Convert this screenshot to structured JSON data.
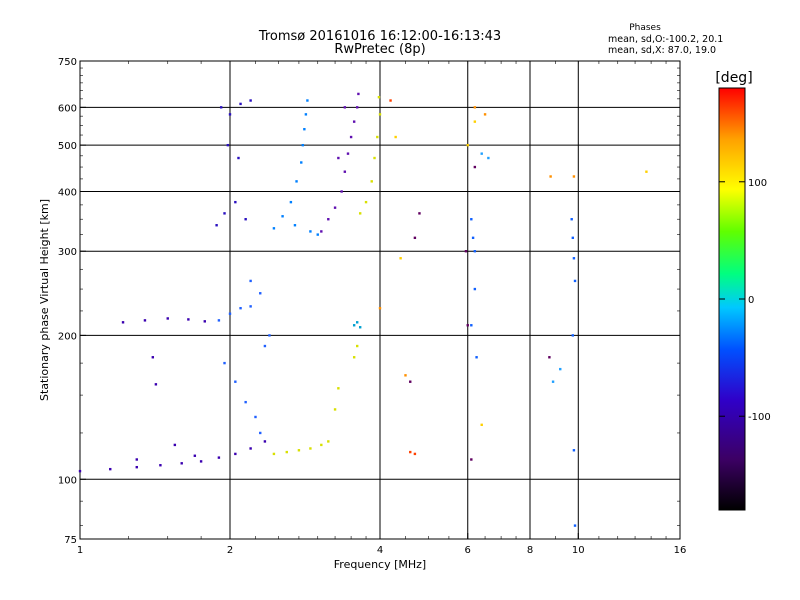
{
  "chart_data": {
    "type": "scatter",
    "title": "Tromsø 20161016 16:12:00-16:13:43",
    "subtitle": "RwPretec (8p)",
    "xlabel": "Frequency [MHz]",
    "ylabel": "Stationary phase Virtual Height [km]",
    "x_scale": "log2",
    "y_scale": "log",
    "xlim": [
      1,
      16
    ],
    "ylim": [
      75,
      750
    ],
    "x_ticks": [
      1,
      2,
      4,
      6,
      8,
      10,
      16
    ],
    "x_tick_labels": [
      "1",
      "2",
      "4",
      "6",
      "8",
      "10",
      "16"
    ],
    "y_ticks": [
      75,
      100,
      200,
      300,
      400,
      500,
      600,
      750
    ],
    "y_tick_labels": [
      "75",
      "100",
      "200",
      "300",
      "400",
      "500",
      "600",
      "750"
    ],
    "grid_x": [
      2,
      4,
      6,
      8,
      10
    ],
    "grid_y": [
      100,
      200,
      300,
      400,
      500,
      600
    ],
    "grid": true,
    "info": {
      "heading": "Phases",
      "line1": "mean, sd,O:-100.2, 20.1",
      "line2": "mean, sd,X:  87.0, 19.0"
    },
    "colorbar": {
      "label": "[deg]",
      "range": [
        -180,
        180
      ],
      "ticks": [
        100,
        0,
        -100
      ],
      "tick_labels": [
        "100",
        "0",
        "-100"
      ],
      "colormap": [
        "#000000",
        "#3c0064",
        "#3000c8",
        "#0050ff",
        "#00c8ff",
        "#00ff80",
        "#60ff00",
        "#ffff00",
        "#ffa000",
        "#ff0000"
      ]
    },
    "series": [
      {
        "color": "#3a00b0",
        "points": [
          [
            1.0,
            104
          ],
          [
            1.15,
            105
          ],
          [
            1.3,
            106
          ],
          [
            1.45,
            107
          ],
          [
            1.6,
            108
          ],
          [
            1.75,
            109
          ],
          [
            1.9,
            111
          ],
          [
            2.05,
            113
          ],
          [
            2.2,
            116
          ],
          [
            2.35,
            120
          ],
          [
            1.22,
            213
          ],
          [
            1.35,
            215
          ],
          [
            1.5,
            217
          ],
          [
            1.65,
            216
          ],
          [
            1.78,
            214
          ],
          [
            1.4,
            180
          ],
          [
            1.42,
            158
          ],
          [
            1.3,
            110
          ],
          [
            1.55,
            118
          ],
          [
            1.7,
            112
          ]
        ]
      },
      {
        "color": "#2060ff",
        "points": [
          [
            1.9,
            215
          ],
          [
            2.0,
            222
          ],
          [
            2.1,
            228
          ],
          [
            2.2,
            230
          ],
          [
            1.95,
            175
          ],
          [
            2.05,
            160
          ],
          [
            2.15,
            145
          ],
          [
            2.25,
            135
          ],
          [
            2.3,
            125
          ],
          [
            2.35,
            190
          ],
          [
            2.4,
            200
          ],
          [
            2.2,
            260
          ],
          [
            2.3,
            245
          ]
        ]
      },
      {
        "color": "#2a10c0",
        "points": [
          [
            1.88,
            340
          ],
          [
            1.95,
            360
          ],
          [
            2.05,
            380
          ],
          [
            2.15,
            350
          ],
          [
            1.92,
            600
          ],
          [
            2.0,
            580
          ],
          [
            2.1,
            610
          ],
          [
            2.2,
            620
          ],
          [
            1.98,
            500
          ],
          [
            2.08,
            470
          ]
        ]
      },
      {
        "color": "#0080ff",
        "points": [
          [
            2.45,
            335
          ],
          [
            2.55,
            355
          ],
          [
            2.65,
            380
          ],
          [
            2.72,
            420
          ],
          [
            2.78,
            460
          ],
          [
            2.8,
            500
          ],
          [
            2.82,
            540
          ],
          [
            2.84,
            580
          ],
          [
            2.86,
            620
          ],
          [
            2.7,
            340
          ],
          [
            2.9,
            330
          ],
          [
            3.0,
            325
          ]
        ]
      },
      {
        "color": "#6010b0",
        "points": [
          [
            3.05,
            330
          ],
          [
            3.15,
            350
          ],
          [
            3.25,
            370
          ],
          [
            3.35,
            400
          ],
          [
            3.4,
            440
          ],
          [
            3.45,
            480
          ],
          [
            3.5,
            520
          ],
          [
            3.55,
            560
          ],
          [
            3.6,
            600
          ],
          [
            3.62,
            640
          ],
          [
            3.3,
            470
          ],
          [
            3.4,
            600
          ]
        ]
      },
      {
        "color": "#d8e000",
        "points": [
          [
            2.45,
            113
          ],
          [
            2.6,
            114
          ],
          [
            2.75,
            115
          ],
          [
            2.9,
            116
          ],
          [
            3.05,
            118
          ],
          [
            3.15,
            120
          ],
          [
            3.25,
            140
          ],
          [
            3.3,
            155
          ],
          [
            3.55,
            180
          ],
          [
            3.6,
            190
          ],
          [
            3.65,
            360
          ],
          [
            3.75,
            380
          ],
          [
            3.85,
            420
          ],
          [
            3.9,
            470
          ],
          [
            3.95,
            520
          ],
          [
            4.0,
            580
          ],
          [
            3.98,
            630
          ]
        ]
      },
      {
        "color": "#ff4000",
        "points": [
          [
            4.6,
            114
          ],
          [
            4.7,
            113
          ],
          [
            4.2,
            620
          ]
        ]
      },
      {
        "color": "#ff9000",
        "points": [
          [
            4.0,
            228
          ],
          [
            4.5,
            165
          ],
          [
            6.2,
            600
          ],
          [
            6.5,
            580
          ],
          [
            8.8,
            430
          ],
          [
            9.8,
            430
          ]
        ]
      },
      {
        "color": "#1060ff",
        "points": [
          [
            6.1,
            350
          ],
          [
            6.15,
            320
          ],
          [
            6.2,
            300
          ],
          [
            6.2,
            250
          ],
          [
            6.1,
            210
          ],
          [
            6.25,
            180
          ],
          [
            9.7,
            350
          ],
          [
            9.75,
            320
          ],
          [
            9.8,
            290
          ],
          [
            9.85,
            260
          ],
          [
            9.75,
            200
          ],
          [
            9.8,
            115
          ],
          [
            9.85,
            80
          ]
        ]
      },
      {
        "color": "#00a0d0",
        "points": [
          [
            3.55,
            210
          ],
          [
            3.6,
            213
          ],
          [
            3.65,
            208
          ]
        ]
      },
      {
        "color": "#600060",
        "points": [
          [
            5.95,
            300
          ],
          [
            6.0,
            210
          ],
          [
            6.1,
            110
          ],
          [
            6.2,
            450
          ],
          [
            8.75,
            180
          ],
          [
            4.7,
            320
          ],
          [
            4.8,
            360
          ],
          [
            4.6,
            160
          ]
        ]
      },
      {
        "color": "#ffd000",
        "points": [
          [
            6.0,
            500
          ],
          [
            6.2,
            560
          ],
          [
            6.4,
            130
          ],
          [
            4.4,
            290
          ],
          [
            4.3,
            520
          ],
          [
            13.7,
            440
          ]
        ]
      },
      {
        "color": "#20a0ff",
        "points": [
          [
            8.9,
            160
          ],
          [
            9.2,
            170
          ],
          [
            6.4,
            480
          ],
          [
            6.6,
            470
          ]
        ]
      }
    ]
  }
}
